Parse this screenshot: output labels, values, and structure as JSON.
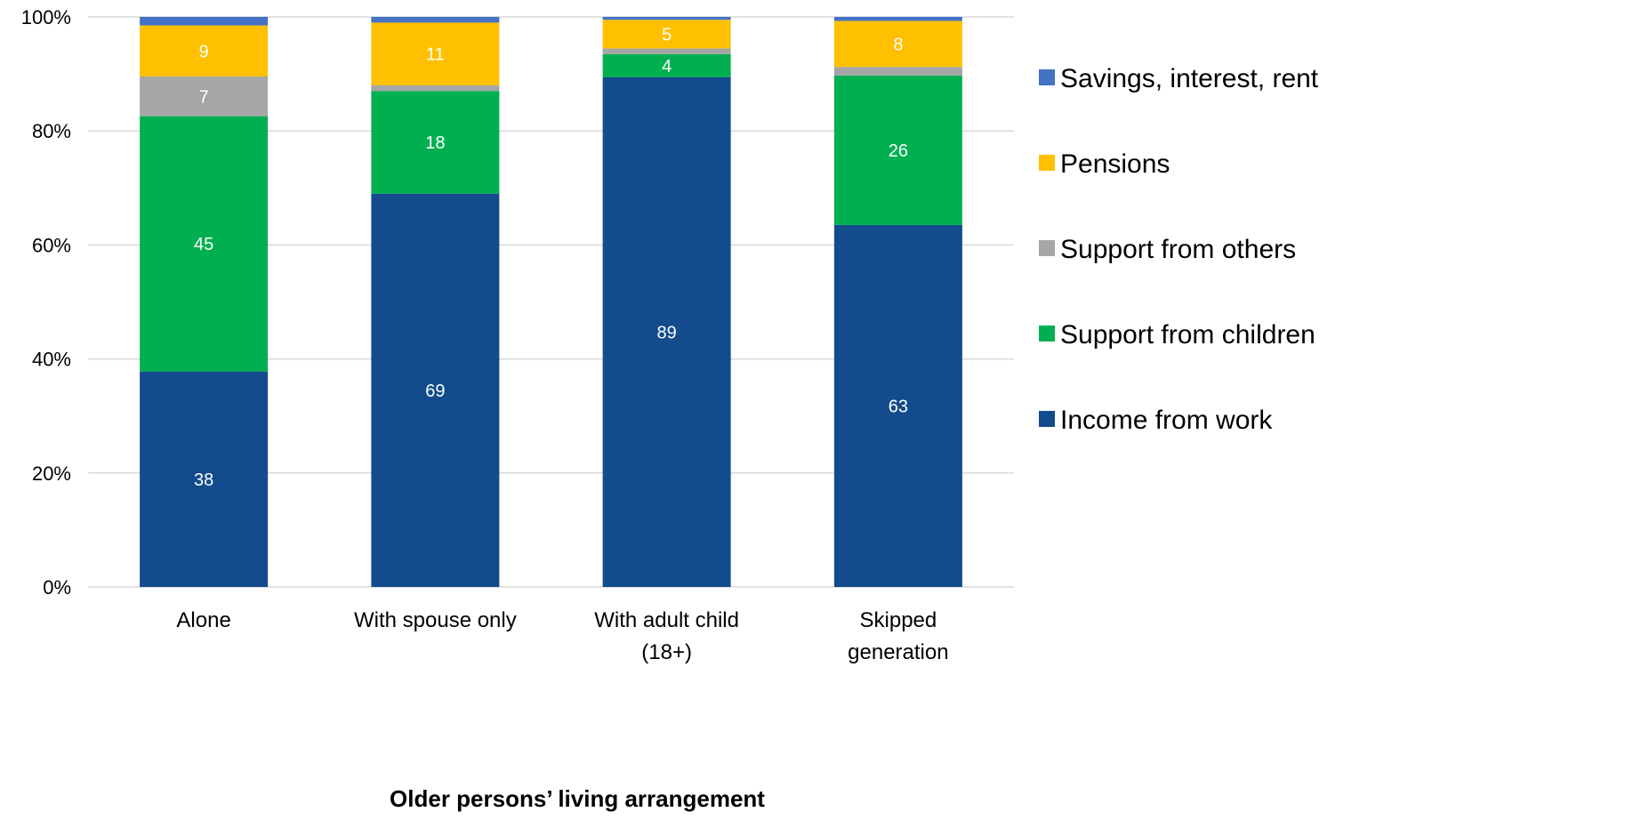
{
  "chart_data": {
    "type": "bar",
    "stacked": true,
    "percent_stacked": true,
    "categories": [
      [
        "Alone"
      ],
      [
        "With spouse only"
      ],
      [
        "With adult child",
        "(18+)"
      ],
      [
        "Skipped",
        "generation"
      ]
    ],
    "series": [
      {
        "name": "Income from work",
        "color": "#134B8C",
        "values": [
          38,
          69,
          89,
          63
        ],
        "labels": [
          "38",
          "69",
          "89",
          "63"
        ],
        "label_color": "#ffffff"
      },
      {
        "name": "Support from children",
        "color": "#00B050",
        "values": [
          45,
          18,
          4,
          26
        ],
        "labels": [
          "45",
          "18",
          "4",
          "26"
        ],
        "label_color": "#ffffff"
      },
      {
        "name": "Support from others",
        "color": "#A6A6A6",
        "values": [
          7,
          1,
          1,
          1.5
        ],
        "labels": [
          "7",
          "",
          "",
          ""
        ],
        "label_color": "#ffffff"
      },
      {
        "name": "Pensions",
        "color": "#FFC000",
        "values": [
          9,
          11,
          5,
          8
        ],
        "labels": [
          "9",
          "11",
          "5",
          "8"
        ],
        "label_color": "#ffffff"
      },
      {
        "name": "Savings, interest, rent",
        "color": "#4472C4",
        "values": [
          1.5,
          1,
          0.5,
          0.7
        ],
        "labels": [
          "",
          "",
          "",
          ""
        ],
        "label_color": "#ffffff"
      }
    ],
    "legend_order": [
      "Savings, interest, rent",
      "Pensions",
      "Support from others",
      "Support from children",
      "Income from work"
    ],
    "y_ticks": [
      "0%",
      "20%",
      "40%",
      "60%",
      "80%",
      "100%"
    ],
    "ylim": [
      0,
      100
    ],
    "xlabel": "Older persons’ living arrangement",
    "ylabel": "",
    "title": "",
    "grid": true,
    "legend_position": "right"
  }
}
